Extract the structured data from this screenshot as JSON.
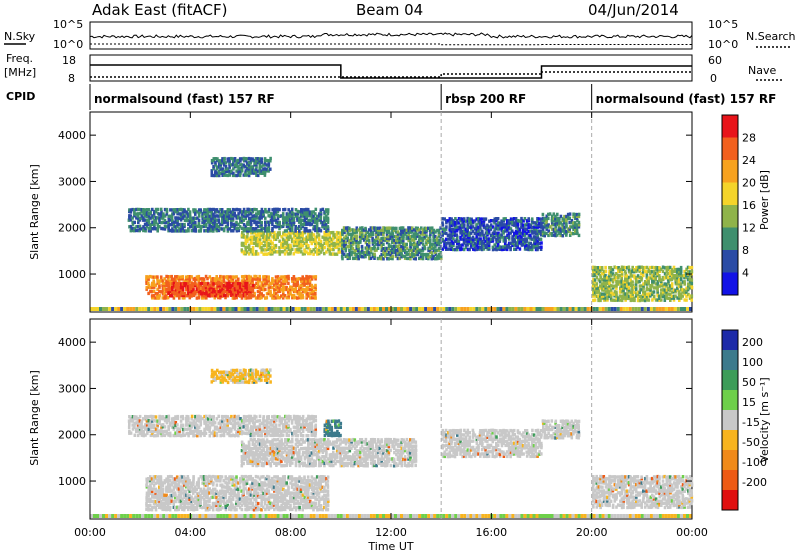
{
  "header": {
    "title": "Adak East (fitACF)",
    "beam": "Beam 04",
    "date": "04/Jun/2014"
  },
  "noise_panel": {
    "left_label": "N.Sky",
    "right_label": "N.Search",
    "left_ticks": [
      "10^5",
      "10^0"
    ],
    "right_ticks": [
      "10^5",
      "10^0"
    ]
  },
  "freq_panel": {
    "left_label_1": "Freq.",
    "left_label_2": "[MHz]",
    "right_label": "Nave",
    "left_ticks": [
      "18",
      "8"
    ],
    "right_ticks": [
      "60",
      "0"
    ]
  },
  "cpid_panel": {
    "label": "CPID",
    "segments": [
      {
        "start": 0,
        "end": 14,
        "text": "normalsound (fast) 157 RF"
      },
      {
        "start": 14,
        "end": 20,
        "text": "rbsp 200 RF"
      },
      {
        "start": 20,
        "end": 24,
        "text": "normalsound (fast) 157 RF"
      }
    ]
  },
  "power_colorbar": {
    "label": "Power [dB]",
    "ticks": [
      "28",
      "24",
      "20",
      "16",
      "12",
      "8",
      "4"
    ],
    "colors": [
      "#e8141a",
      "#f2601e",
      "#f7a21f",
      "#f4d42a",
      "#8fb34a",
      "#3f8f6e",
      "#2a4ba5",
      "#1212e6"
    ]
  },
  "velocity_colorbar": {
    "label": "Velocity [m s⁻¹]",
    "ticks": [
      "200",
      "100",
      "50",
      "15",
      "-15",
      "-50",
      "-100",
      "-200"
    ],
    "colors": [
      "#1c2aa8",
      "#3c7a8c",
      "#3c9c58",
      "#6ed04a",
      "#c8c8c8",
      "#f7b41f",
      "#f08a1a",
      "#ee5a14",
      "#e00e0e"
    ]
  },
  "chart_data": {
    "type": "heatmap",
    "x_axis": {
      "label": "Time UT",
      "range_hours": [
        0,
        24
      ],
      "ticks": [
        "00:00",
        "04:00",
        "08:00",
        "12:00",
        "16:00",
        "20:00",
        "00:00"
      ]
    },
    "y_axis": {
      "label": "Slant Range [km]",
      "range_km": [
        180,
        4500
      ],
      "ticks": [
        "1000",
        "2000",
        "3000",
        "4000"
      ]
    },
    "mode_change_times_hours": [
      14,
      20
    ],
    "noise_search_step_hours": [
      {
        "start": 0,
        "end": 14,
        "level": 16
      },
      {
        "start": 14,
        "end": 18,
        "level": 10
      },
      {
        "start": 18,
        "end": 24,
        "level": 12
      }
    ],
    "power_regions": [
      {
        "t0": 2.2,
        "t1": 9.0,
        "r0": 450,
        "r1": 950,
        "db": 24
      },
      {
        "t0": 3.0,
        "t1": 6.5,
        "r0": 500,
        "r1": 800,
        "db": 28
      },
      {
        "t0": 6.0,
        "t1": 10.0,
        "r0": 1400,
        "r1": 1900,
        "db": 16
      },
      {
        "t0": 10.0,
        "t1": 14.0,
        "r0": 1300,
        "r1": 2000,
        "db": 10
      },
      {
        "t0": 14.0,
        "t1": 18.0,
        "r0": 1500,
        "r1": 2200,
        "db": 6
      },
      {
        "t0": 1.5,
        "t1": 9.5,
        "r0": 1900,
        "r1": 2400,
        "db": 8
      },
      {
        "t0": 4.8,
        "t1": 7.2,
        "r0": 3100,
        "r1": 3500,
        "db": 8
      },
      {
        "t0": 18.0,
        "t1": 19.5,
        "r0": 1800,
        "r1": 2300,
        "db": 10
      },
      {
        "t0": 20.0,
        "t1": 24.0,
        "r0": 400,
        "r1": 1150,
        "db": 14
      }
    ],
    "velocity_regions": [
      {
        "t0": 2.2,
        "t1": 9.5,
        "r0": 350,
        "r1": 1100,
        "v": 0
      },
      {
        "t0": 6.0,
        "t1": 13.0,
        "r0": 1300,
        "r1": 1900,
        "v": 0
      },
      {
        "t0": 1.5,
        "t1": 9.0,
        "r0": 1950,
        "r1": 2400,
        "v": 0
      },
      {
        "t0": 9.3,
        "t1": 10.0,
        "r0": 1950,
        "r1": 2300,
        "v": 150
      },
      {
        "t0": 14.0,
        "t1": 18.0,
        "r0": 1500,
        "r1": 2100,
        "v": 0
      },
      {
        "t0": 18.0,
        "t1": 19.5,
        "r0": 1900,
        "r1": 2300,
        "v": 0
      },
      {
        "t0": 20.0,
        "t1": 24.0,
        "r0": 400,
        "r1": 1100,
        "v": 0
      },
      {
        "t0": 4.8,
        "t1": 7.2,
        "r0": 3100,
        "r1": 3400,
        "v": -20
      }
    ]
  }
}
